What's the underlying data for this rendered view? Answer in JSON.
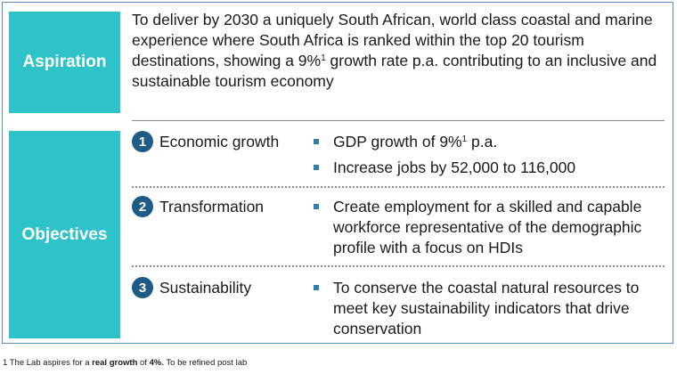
{
  "aspiration": {
    "label": "Aspiration",
    "text_before": "To deliver by 2030 a uniquely South African, world class coastal and marine experience where South Africa is ranked within the top 20 tourism destinations, showing a 9%",
    "sup": "1",
    "text_after": " growth rate p.a. contributing to an inclusive and sustainable tourism economy"
  },
  "objectives": {
    "label": "Objectives",
    "items": [
      {
        "number": "1",
        "title": "Economic growth",
        "bullets": [
          {
            "before": "GDP growth of 9%",
            "sup": "1",
            "after": " p.a."
          },
          {
            "before": "Increase jobs by 52,000 to 116,000"
          }
        ]
      },
      {
        "number": "2",
        "title": "Transformation",
        "bullets": [
          {
            "before": "Create employment for a skilled and capable workforce representative of the demographic profile with a focus on HDIs"
          }
        ]
      },
      {
        "number": "3",
        "title": "Sustainability",
        "bullets": [
          {
            "before": "To conserve the coastal natural resources to meet key sustainability indicators that drive conservation"
          }
        ]
      }
    ]
  },
  "footnote": {
    "p1": "1 The Lab aspires for a ",
    "bold1": "real growth",
    "p2": " of ",
    "bold2": "4%.",
    "p3": "  To be refined post lab"
  },
  "colors": {
    "label_bg": "#2ec3c9",
    "number_circle": "#1f5b87",
    "bullet": "#2e7fa8",
    "frame": "#5b8fbf"
  }
}
